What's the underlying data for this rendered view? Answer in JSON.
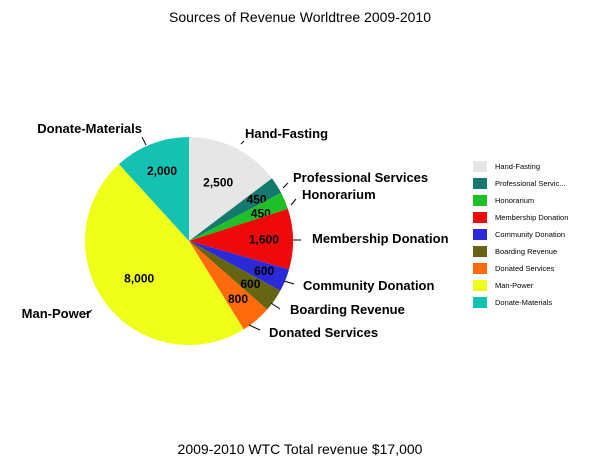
{
  "title": "Sources of Revenue Worldtree 2009-2010",
  "footer": "2009-2010 WTC Total revenue $17,000",
  "chart_data": {
    "type": "pie",
    "title": "Sources of Revenue Worldtree 2009-2010",
    "legend_position": "right",
    "slices": [
      {
        "name": "Hand-Fasting",
        "legend": "Hand-Fasting",
        "value": 2500,
        "value_label": "2,500",
        "color": "#e6e6e6"
      },
      {
        "name": "Professional Services",
        "legend": "Professional Servic...",
        "value": 450,
        "value_label": "450",
        "color": "#147a6e"
      },
      {
        "name": "Honorarium",
        "legend": "Honorarium",
        "value": 450,
        "value_label": "450",
        "color": "#1fbf27"
      },
      {
        "name": "Membership Donation",
        "legend": "Membership Donation",
        "value": 1600,
        "value_label": "1,600",
        "color": "#ee0a0a"
      },
      {
        "name": "Community Donation",
        "legend": "Community Donation",
        "value": 600,
        "value_label": "600",
        "color": "#2a2ad8"
      },
      {
        "name": "Boarding Revenue",
        "legend": "Boarding Revenue",
        "value": 600,
        "value_label": "600",
        "color": "#666612"
      },
      {
        "name": "Donated Services",
        "legend": "Donated Services",
        "value": 800,
        "value_label": "800",
        "color": "#ff6a0a"
      },
      {
        "name": "Man-Power",
        "legend": "Man-Power",
        "value": 8000,
        "value_label": "8,000",
        "color": "#eeff1a"
      },
      {
        "name": "Donate-Materials",
        "legend": "Donate-Materials",
        "value": 2000,
        "value_label": "2,000",
        "color": "#14c2b4"
      }
    ]
  }
}
